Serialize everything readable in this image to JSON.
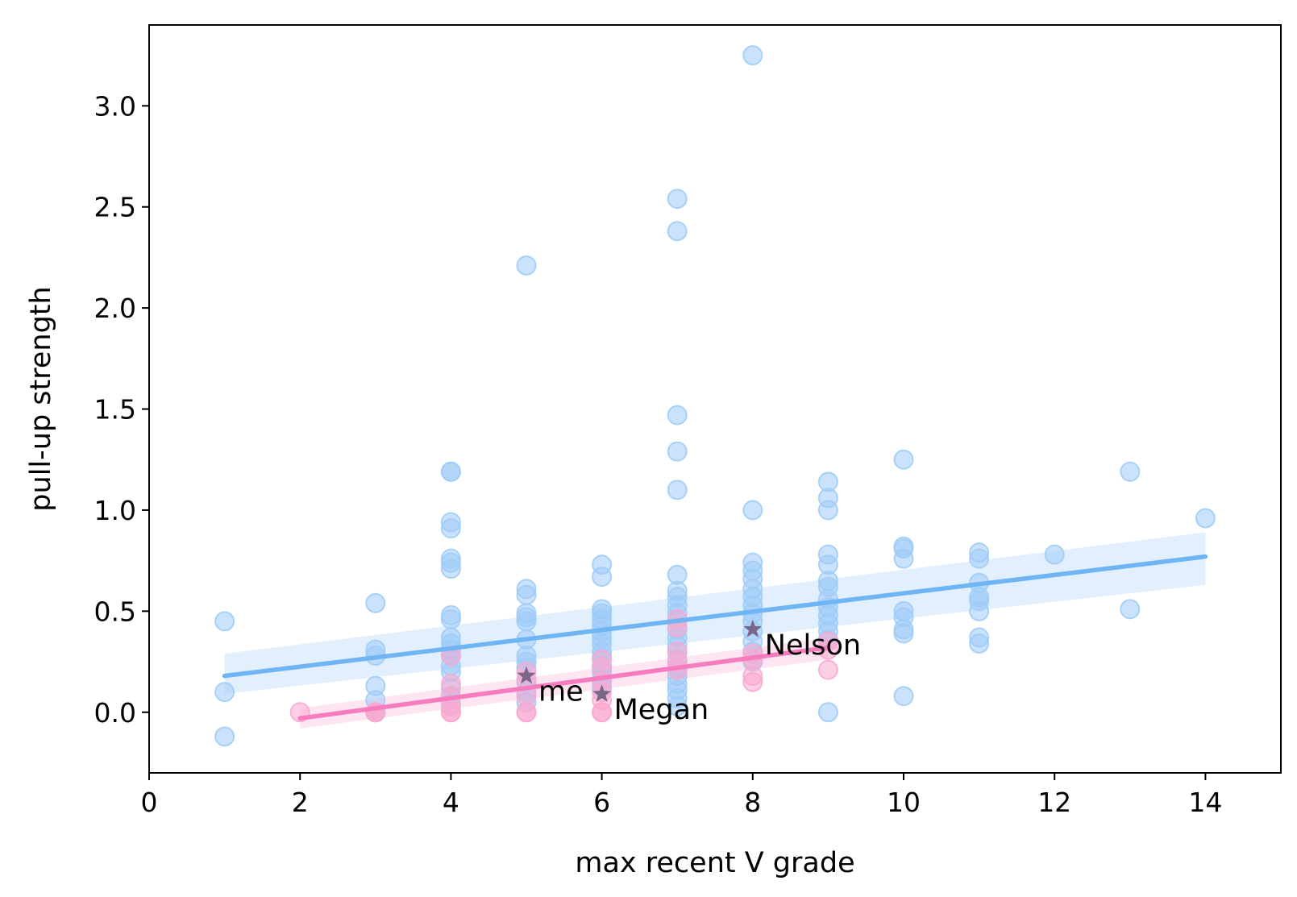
{
  "chart_data": {
    "type": "scatter",
    "title": "",
    "xlabel": "max recent V grade",
    "ylabel": "pull-up strength",
    "xlim": [
      0,
      15
    ],
    "ylim": [
      -0.3,
      3.4
    ],
    "xticks": [
      "0",
      "2",
      "4",
      "6",
      "8",
      "10",
      "12",
      "14"
    ],
    "xtick_values": [
      0,
      2,
      4,
      6,
      8,
      10,
      12,
      14
    ],
    "yticks": [
      "0.0",
      "0.5",
      "1.0",
      "1.5",
      "2.0",
      "2.5",
      "3.0"
    ],
    "ytick_values": [
      0.0,
      0.5,
      1.0,
      1.5,
      2.0,
      2.5,
      3.0
    ],
    "grid": false,
    "legend": "none",
    "colors": {
      "blue_points": "#9ecbf7",
      "blue_line": "#6fb4f3",
      "blue_band": "#cfe6fb",
      "pink_points": "#f9a8d0",
      "pink_line": "#f77bbf",
      "pink_band": "#fbd3e8",
      "star": "#7a6688"
    },
    "series": [
      {
        "points": [
          [
            1,
            0.45
          ],
          [
            1,
            0.1
          ],
          [
            1,
            -0.12
          ],
          [
            3,
            0.54
          ],
          [
            3,
            0.31
          ],
          [
            3,
            0.28
          ],
          [
            3,
            0.13
          ],
          [
            3,
            0.06
          ],
          [
            3,
            0.0
          ],
          [
            4,
            1.19
          ],
          [
            4,
            1.19
          ],
          [
            4,
            0.94
          ],
          [
            4,
            0.91
          ],
          [
            4,
            0.76
          ],
          [
            4,
            0.74
          ],
          [
            4,
            0.71
          ],
          [
            4,
            0.48
          ],
          [
            4,
            0.46
          ],
          [
            4,
            0.37
          ],
          [
            4,
            0.34
          ],
          [
            4,
            0.31
          ],
          [
            4,
            0.28
          ],
          [
            4,
            0.23
          ],
          [
            4,
            0.2
          ],
          [
            4,
            0.12
          ],
          [
            4,
            0.08
          ],
          [
            4,
            0.04
          ],
          [
            5,
            2.21
          ],
          [
            5,
            0.61
          ],
          [
            5,
            0.58
          ],
          [
            5,
            0.49
          ],
          [
            5,
            0.47
          ],
          [
            5,
            0.45
          ],
          [
            5,
            0.36
          ],
          [
            5,
            0.28
          ],
          [
            5,
            0.25
          ],
          [
            5,
            0.22
          ],
          [
            5,
            0.15
          ],
          [
            5,
            0.1
          ],
          [
            5,
            0.05
          ],
          [
            6,
            0.73
          ],
          [
            6,
            0.67
          ],
          [
            6,
            0.51
          ],
          [
            6,
            0.49
          ],
          [
            6,
            0.46
          ],
          [
            6,
            0.43
          ],
          [
            6,
            0.4
          ],
          [
            6,
            0.37
          ],
          [
            6,
            0.34
          ],
          [
            6,
            0.3
          ],
          [
            6,
            0.27
          ],
          [
            6,
            0.23
          ],
          [
            6,
            0.2
          ],
          [
            6,
            0.16
          ],
          [
            6,
            0.12
          ],
          [
            7,
            2.54
          ],
          [
            7,
            2.38
          ],
          [
            7,
            1.47
          ],
          [
            7,
            1.29
          ],
          [
            7,
            1.1
          ],
          [
            7,
            0.68
          ],
          [
            7,
            0.6
          ],
          [
            7,
            0.57
          ],
          [
            7,
            0.53
          ],
          [
            7,
            0.49
          ],
          [
            7,
            0.45
          ],
          [
            7,
            0.41
          ],
          [
            7,
            0.37
          ],
          [
            7,
            0.33
          ],
          [
            7,
            0.3
          ],
          [
            7,
            0.26
          ],
          [
            7,
            0.22
          ],
          [
            7,
            0.18
          ],
          [
            7,
            0.14
          ],
          [
            7,
            0.11
          ],
          [
            7,
            0.07
          ],
          [
            7,
            0.03
          ],
          [
            8,
            3.25
          ],
          [
            8,
            1.0
          ],
          [
            8,
            0.74
          ],
          [
            8,
            0.7
          ],
          [
            8,
            0.66
          ],
          [
            8,
            0.61
          ],
          [
            8,
            0.57
          ],
          [
            8,
            0.53
          ],
          [
            8,
            0.49
          ],
          [
            8,
            0.45
          ],
          [
            8,
            0.4
          ],
          [
            8,
            0.35
          ],
          [
            8,
            0.3
          ],
          [
            8,
            0.25
          ],
          [
            9,
            1.14
          ],
          [
            9,
            1.06
          ],
          [
            9,
            1.0
          ],
          [
            9,
            0.78
          ],
          [
            9,
            0.73
          ],
          [
            9,
            0.65
          ],
          [
            9,
            0.62
          ],
          [
            9,
            0.56
          ],
          [
            9,
            0.52
          ],
          [
            9,
            0.48
          ],
          [
            9,
            0.44
          ],
          [
            9,
            0.4
          ],
          [
            9,
            0.36
          ],
          [
            9,
            0.0
          ],
          [
            10,
            1.25
          ],
          [
            10,
            0.82
          ],
          [
            10,
            0.81
          ],
          [
            10,
            0.76
          ],
          [
            10,
            0.5
          ],
          [
            10,
            0.47
          ],
          [
            10,
            0.41
          ],
          [
            10,
            0.39
          ],
          [
            10,
            0.08
          ],
          [
            11,
            0.79
          ],
          [
            11,
            0.76
          ],
          [
            11,
            0.64
          ],
          [
            11,
            0.57
          ],
          [
            11,
            0.55
          ],
          [
            11,
            0.5
          ],
          [
            11,
            0.37
          ],
          [
            11,
            0.34
          ],
          [
            12,
            0.78
          ],
          [
            13,
            1.19
          ],
          [
            13,
            0.51
          ],
          [
            14,
            0.96
          ]
        ],
        "fit": {
          "x": [
            1,
            14
          ],
          "y": [
            0.18,
            0.77
          ]
        },
        "band": {
          "x": [
            1,
            14
          ],
          "upper": [
            0.29,
            0.89
          ],
          "lower": [
            0.09,
            0.63
          ]
        }
      },
      {
        "points": [
          [
            2,
            0.0
          ],
          [
            3,
            0.0
          ],
          [
            3,
            0.0
          ],
          [
            3,
            0.0
          ],
          [
            4,
            0.28
          ],
          [
            4,
            0.14
          ],
          [
            4,
            0.08
          ],
          [
            4,
            0.03
          ],
          [
            4,
            0.0
          ],
          [
            4,
            0.0
          ],
          [
            5,
            0.2
          ],
          [
            5,
            0.16
          ],
          [
            5,
            0.08
          ],
          [
            5,
            0.0
          ],
          [
            5,
            0.0
          ],
          [
            6,
            0.26
          ],
          [
            6,
            0.22
          ],
          [
            6,
            0.15
          ],
          [
            6,
            0.1
          ],
          [
            6,
            0.06
          ],
          [
            6,
            0.0
          ],
          [
            6,
            0.0
          ],
          [
            7,
            0.46
          ],
          [
            7,
            0.42
          ],
          [
            7,
            0.3
          ],
          [
            7,
            0.25
          ],
          [
            7,
            0.21
          ],
          [
            8,
            0.29
          ],
          [
            8,
            0.26
          ],
          [
            8,
            0.18
          ],
          [
            8,
            0.15
          ],
          [
            9,
            0.35
          ],
          [
            9,
            0.31
          ],
          [
            9,
            0.21
          ]
        ],
        "fit": {
          "x": [
            2,
            9
          ],
          "y": [
            -0.03,
            0.32
          ]
        },
        "band": {
          "x": [
            2,
            9
          ],
          "upper": [
            0.02,
            0.37
          ],
          "lower": [
            -0.08,
            0.26
          ]
        }
      }
    ],
    "annotations": [
      {
        "label": "me",
        "x": 5,
        "y": 0.18
      },
      {
        "label": "Megan",
        "x": 6,
        "y": 0.09
      },
      {
        "label": "Nelson",
        "x": 8,
        "y": 0.41
      }
    ]
  }
}
